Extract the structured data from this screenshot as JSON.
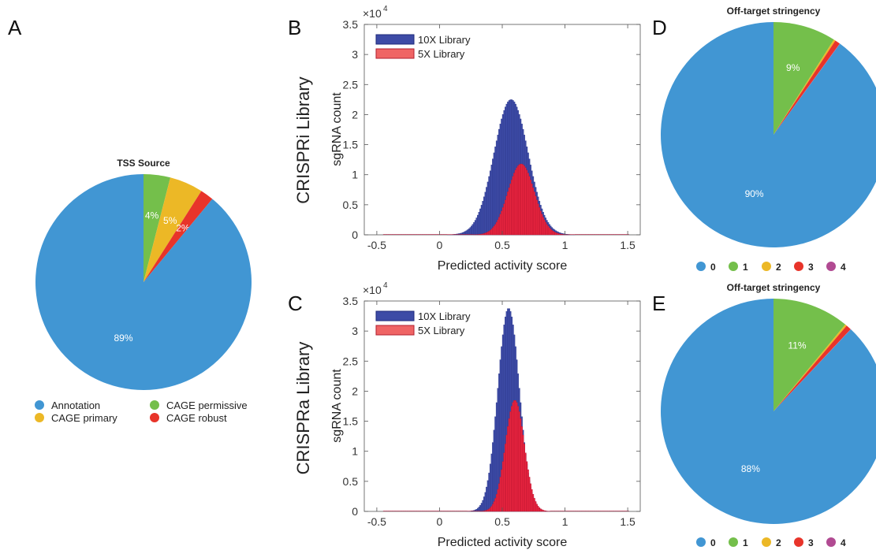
{
  "panel_labels": {
    "a": "A",
    "b": "B",
    "c": "C",
    "d": "D",
    "e": "E"
  },
  "row_labels": {
    "crispri": "CRISPRi Library",
    "crispra": "CRISPRa Library"
  },
  "colors": {
    "blue": "#4196d3",
    "green": "#74bf4b",
    "yellow": "#ecb826",
    "red": "#e8342a",
    "purple": "#b14a92",
    "hist10x": "#3d4ba6",
    "hist5x": "#e6243f"
  },
  "chart_data": [
    {
      "id": "tss",
      "type": "pie",
      "title": "TSS Source",
      "start_angle_deg": 0,
      "slices": [
        {
          "name": "CAGE permissive",
          "value": 4,
          "label": "4%",
          "color": "#74bf4b"
        },
        {
          "name": "CAGE primary",
          "value": 5,
          "label": "5%",
          "color": "#ecb826"
        },
        {
          "name": "CAGE robust",
          "value": 2,
          "label": "2%",
          "color": "#e8342a"
        },
        {
          "name": "Annotation",
          "value": 89,
          "label": "89%",
          "color": "#4196d3"
        }
      ],
      "legend": {
        "placement": "bottom",
        "entries": [
          {
            "name": "Annotation",
            "color": "#4196d3"
          },
          {
            "name": "CAGE permissive",
            "color": "#74bf4b"
          },
          {
            "name": "CAGE primary",
            "color": "#ecb826"
          },
          {
            "name": "CAGE robust",
            "color": "#e8342a"
          }
        ]
      }
    },
    {
      "id": "crispri_hist",
      "type": "bar",
      "title": "",
      "xlabel": "Predicted activity score",
      "ylabel": "sgRNA count",
      "xlim": [
        -0.6,
        1.6
      ],
      "ylim": [
        0,
        35000
      ],
      "xticks": [
        -0.5,
        0,
        0.5,
        1,
        1.5
      ],
      "xtick_labels": [
        "-0.5",
        "0",
        "0.5",
        "1",
        "1.5"
      ],
      "yticks": [
        0,
        5000,
        10000,
        15000,
        20000,
        25000,
        30000,
        35000
      ],
      "ytick_labels": [
        "0",
        "0.5",
        "1",
        "1.5",
        "2",
        "2.5",
        "3",
        "3.5"
      ],
      "y_multiplier": "×10",
      "y_multiplier_exp": "4",
      "bin_width": 0.01,
      "legend_placement": "top-left",
      "series": [
        {
          "name": "10X Library",
          "color": "#3d4ba6",
          "peak": 22500,
          "center": 0.57,
          "sd": 0.135,
          "xmin": -0.45,
          "xmax": 1.5
        },
        {
          "name": "5X Library",
          "color": "#e6243f",
          "peak": 11800,
          "center": 0.65,
          "sd": 0.105,
          "xmin": -0.45,
          "xmax": 1.5
        }
      ]
    },
    {
      "id": "crispra_hist",
      "type": "bar",
      "title": "",
      "xlabel": "Predicted activity score",
      "ylabel": "sgRNA count",
      "xlim": [
        -0.6,
        1.6
      ],
      "ylim": [
        0,
        35000
      ],
      "xticks": [
        -0.5,
        0,
        0.5,
        1,
        1.5
      ],
      "xtick_labels": [
        "-0.5",
        "0",
        "0.5",
        "1",
        "1.5"
      ],
      "yticks": [
        0,
        5000,
        10000,
        15000,
        20000,
        25000,
        30000,
        35000
      ],
      "ytick_labels": [
        "0",
        "0.5",
        "1",
        "1.5",
        "2",
        "2.5",
        "3",
        "3.5"
      ],
      "y_multiplier": "×10",
      "y_multiplier_exp": "4",
      "bin_width": 0.01,
      "legend_placement": "top-left",
      "series": [
        {
          "name": "10X Library",
          "color": "#3d4ba6",
          "peak": 33800,
          "center": 0.55,
          "sd": 0.085,
          "xmin": -0.45,
          "xmax": 1.5
        },
        {
          "name": "5X Library",
          "color": "#e6243f",
          "peak": 18500,
          "center": 0.6,
          "sd": 0.075,
          "xmin": -0.45,
          "xmax": 1.5
        }
      ]
    },
    {
      "id": "crispri_offtarget",
      "type": "pie",
      "title": "Off-target stringency",
      "start_angle_deg": 0,
      "slices": [
        {
          "name": "1",
          "value": 9,
          "label": "9%",
          "color": "#74bf4b"
        },
        {
          "name": "2",
          "value": 0.25,
          "label": "",
          "color": "#ecb826"
        },
        {
          "name": "3",
          "value": 0.75,
          "label": "",
          "color": "#e8342a"
        },
        {
          "name": "4",
          "value": 0.05,
          "label": "",
          "color": "#b14a92"
        },
        {
          "name": "0",
          "value": 90,
          "label": "90%",
          "color": "#4196d3"
        }
      ],
      "legend": {
        "placement": "bottom",
        "entries": [
          {
            "name": "0",
            "color": "#4196d3"
          },
          {
            "name": "1",
            "color": "#74bf4b"
          },
          {
            "name": "2",
            "color": "#ecb826"
          },
          {
            "name": "3",
            "color": "#e8342a"
          },
          {
            "name": "4",
            "color": "#b14a92"
          }
        ]
      }
    },
    {
      "id": "crispra_offtarget",
      "type": "pie",
      "title": "Off-target stringency",
      "start_angle_deg": 0,
      "slices": [
        {
          "name": "1",
          "value": 11,
          "label": "11%",
          "color": "#74bf4b"
        },
        {
          "name": "2",
          "value": 0.25,
          "label": "",
          "color": "#ecb826"
        },
        {
          "name": "3",
          "value": 0.75,
          "label": "",
          "color": "#e8342a"
        },
        {
          "name": "4",
          "value": 0.05,
          "label": "",
          "color": "#b14a92"
        },
        {
          "name": "0",
          "value": 88,
          "label": "88%",
          "color": "#4196d3"
        }
      ],
      "legend": {
        "placement": "bottom",
        "entries": [
          {
            "name": "0",
            "color": "#4196d3"
          },
          {
            "name": "1",
            "color": "#74bf4b"
          },
          {
            "name": "2",
            "color": "#ecb826"
          },
          {
            "name": "3",
            "color": "#e8342a"
          },
          {
            "name": "4",
            "color": "#b14a92"
          }
        ]
      }
    }
  ]
}
